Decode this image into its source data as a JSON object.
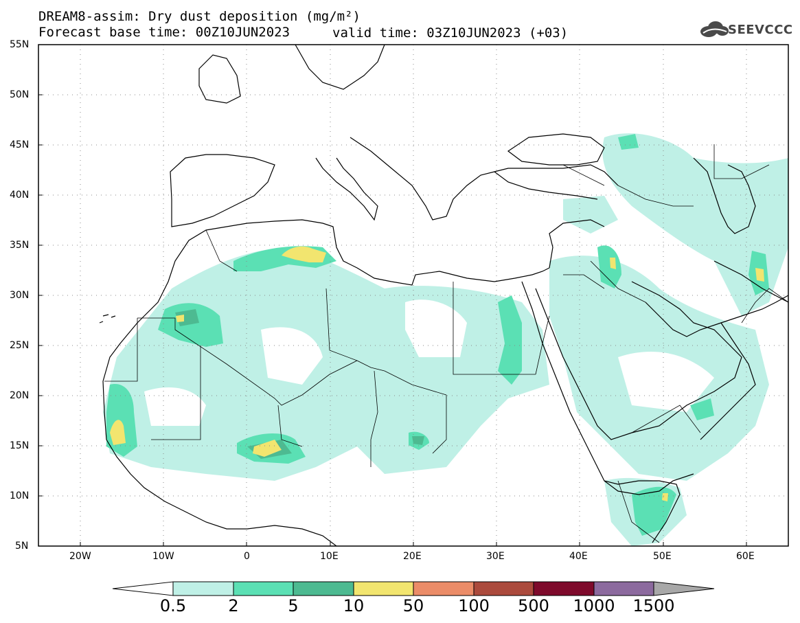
{
  "title": {
    "line1": "DREAM8-assim: Dry dust deposition (mg/m²)",
    "line2": "Forecast base time: 00Z10JUN2023",
    "valid": "valid time: 03Z10JUN2023 (+03)"
  },
  "logo": {
    "text": "SEEVCCC",
    "icon": "cloud-logo-icon"
  },
  "map": {
    "lon_range": [
      -25,
      65
    ],
    "lat_range": [
      5,
      55
    ],
    "lat_ticks": [
      "55N",
      "50N",
      "45N",
      "40N",
      "35N",
      "30N",
      "25N",
      "20N",
      "15N",
      "10N",
      "5N"
    ],
    "lon_ticks": [
      "20W",
      "10W",
      "0",
      "10E",
      "20E",
      "30E",
      "40E",
      "50E",
      "60E"
    ],
    "grid": true
  },
  "colorbar": {
    "labels": [
      "0.5",
      "2",
      "5",
      "10",
      "50",
      "100",
      "500",
      "1000",
      "1500"
    ],
    "colors": [
      "#bff0e6",
      "#5be0b4",
      "#4dba91",
      "#f2e56f",
      "#eb8c68",
      "#ab4a3c",
      "#7e0a2b",
      "#8c6a9e",
      "#a8a8a8"
    ]
  }
}
